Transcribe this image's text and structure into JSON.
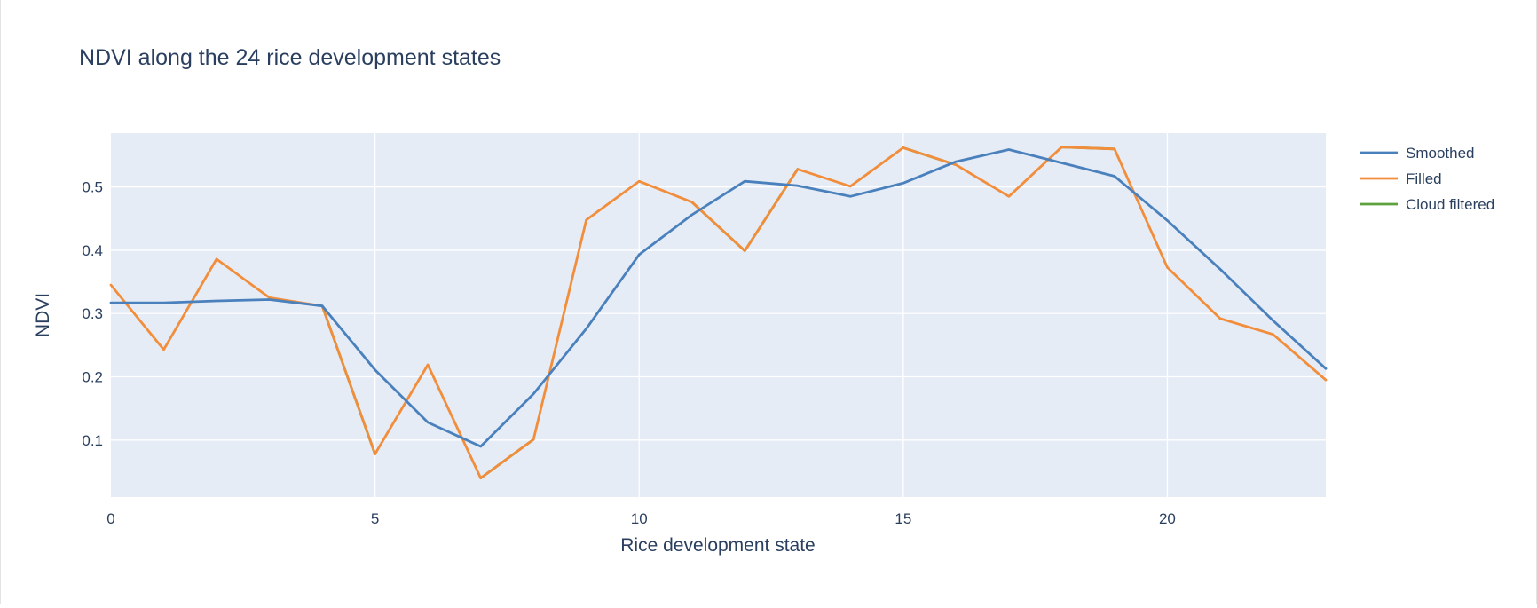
{
  "chart_data": {
    "type": "line",
    "title": "NDVI along the 24 rice development states",
    "xlabel": "Rice development state",
    "ylabel": "NDVI",
    "xlim": [
      0,
      23
    ],
    "ylim": [
      0.01,
      0.585
    ],
    "x_ticks": [
      0,
      5,
      10,
      15,
      20
    ],
    "y_ticks": [
      0.1,
      0.2,
      0.3,
      0.4,
      0.5
    ],
    "x_tick_labels": [
      "0",
      "5",
      "10",
      "15",
      "20"
    ],
    "y_tick_labels": [
      "0.1",
      "0.2",
      "0.3",
      "0.4",
      "0.5"
    ],
    "grid": true,
    "legend_position": "top-right",
    "x": [
      0,
      1,
      2,
      3,
      4,
      5,
      6,
      7,
      8,
      9,
      10,
      11,
      12,
      13,
      14,
      15,
      16,
      17,
      18,
      19,
      20,
      21,
      22,
      23
    ],
    "series": [
      {
        "name": "Cloud filtered",
        "color": "#5ea13f",
        "values": [
          null,
          null,
          null,
          null,
          0.312,
          0.078,
          null,
          0.04,
          0.101,
          null,
          null,
          0.476,
          0.399,
          0.528,
          null,
          0.562,
          0.535,
          null,
          0.563,
          0.56,
          null,
          null,
          null,
          null
        ]
      },
      {
        "name": "Filled",
        "color": "#f28e3b",
        "values": [
          0.345,
          0.243,
          0.386,
          0.325,
          0.312,
          0.078,
          0.219,
          0.04,
          0.101,
          0.448,
          0.509,
          0.476,
          0.399,
          0.528,
          0.501,
          0.562,
          0.535,
          0.485,
          0.563,
          0.56,
          0.373,
          0.292,
          0.267,
          0.195
        ]
      },
      {
        "name": "Smoothed",
        "color": "#4a81bd",
        "values": [
          0.317,
          0.317,
          0.32,
          0.322,
          0.312,
          0.211,
          0.128,
          0.09,
          0.173,
          0.276,
          0.393,
          0.456,
          0.509,
          0.502,
          0.485,
          0.506,
          0.54,
          0.559,
          0.538,
          0.517,
          0.447,
          0.37,
          0.289,
          0.213
        ]
      }
    ],
    "legend_order": [
      "Smoothed",
      "Filled",
      "Cloud filtered"
    ]
  },
  "colors": {
    "plot_background": "#e5ecf6",
    "grid": "#ffffff",
    "text": "#2a3f5f"
  }
}
